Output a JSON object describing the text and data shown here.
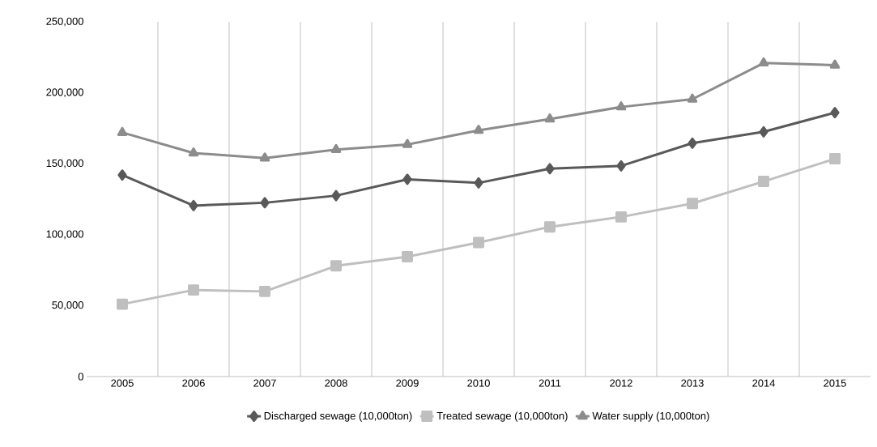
{
  "chart_data": {
    "type": "line",
    "categories": [
      "2005",
      "2006",
      "2007",
      "2008",
      "2009",
      "2010",
      "2011",
      "2012",
      "2013",
      "2014",
      "2015"
    ],
    "series": [
      {
        "name": "Discharged sewage (10,000ton)",
        "color": "#595959",
        "marker": "diamond",
        "values": [
          142000,
          120500,
          122500,
          127500,
          139000,
          136500,
          146500,
          148500,
          164500,
          172500,
          186000
        ]
      },
      {
        "name": "Treated sewage (10,000ton)",
        "color": "#bfbfbf",
        "marker": "square",
        "values": [
          51000,
          61000,
          60000,
          78000,
          84500,
          94500,
          105500,
          112500,
          122000,
          137500,
          153500
        ]
      },
      {
        "name": "Water supply (10,000ton)",
        "color": "#8c8c8c",
        "marker": "triangle",
        "values": [
          172000,
          157500,
          154000,
          160000,
          163500,
          173500,
          181500,
          190000,
          195500,
          221000,
          219500
        ]
      }
    ],
    "ylim": [
      0,
      250000
    ],
    "yticks": [
      0,
      {
        "value": 50000,
        "label": "50,000"
      },
      {
        "value": 100000,
        "label": "100,000"
      },
      {
        "value": 150000,
        "label": "150,000"
      },
      {
        "value": 200000,
        "label": "200,000"
      },
      {
        "value": 250000,
        "label": "250,000"
      }
    ],
    "grid": "x",
    "legend": "bottom",
    "line_style": "solid"
  }
}
